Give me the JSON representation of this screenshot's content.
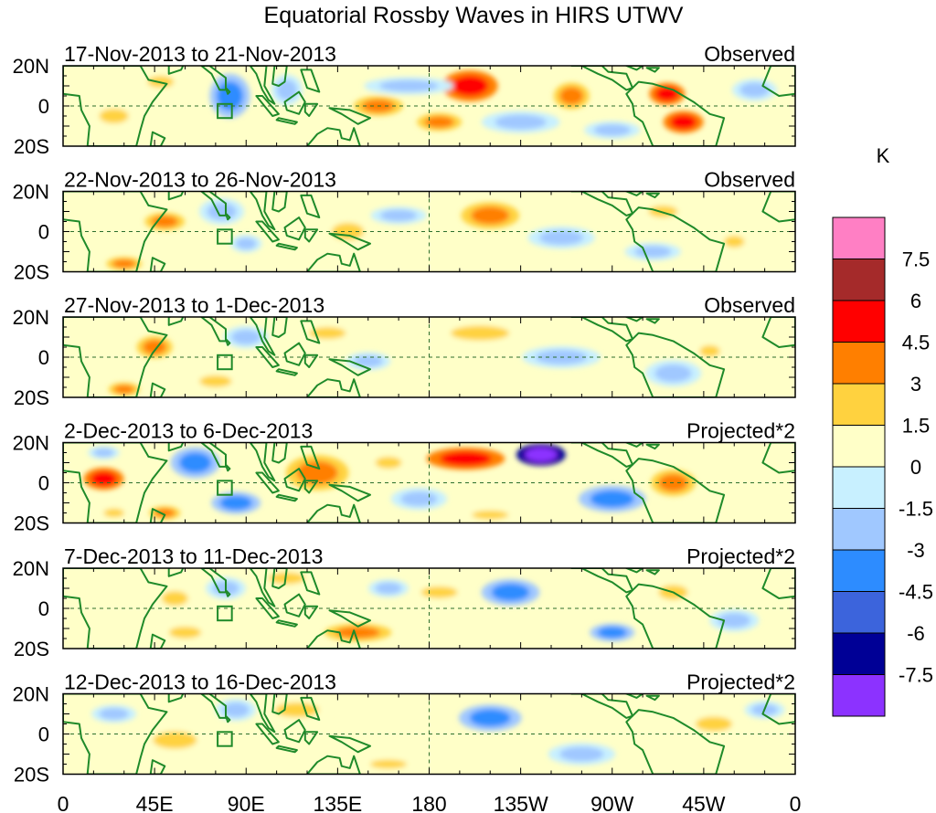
{
  "chart_data": {
    "type": "heatmap",
    "title": "Equatorial Rossby Waves in HIRS UTWV",
    "units": "K",
    "lon_ticks": [
      "0",
      "45E",
      "90E",
      "135E",
      "180",
      "135W",
      "90W",
      "45W",
      "0"
    ],
    "lat_ticks": [
      "20N",
      "0",
      "20S"
    ],
    "lon_range": [
      0,
      360
    ],
    "lat_range": [
      -20,
      20
    ],
    "colorbar": {
      "label": "K",
      "levels": [
        "7.5",
        "6",
        "4.5",
        "3",
        "1.5",
        "0",
        "-1.5",
        "-3",
        "-4.5",
        "-6",
        "-7.5"
      ],
      "colors": [
        "#ff7fc4",
        "#a52a2a",
        "#ff0000",
        "#ff7f00",
        "#ffd23f",
        "#ffffc8",
        "#c8f0ff",
        "#a0c8ff",
        "#2d8cff",
        "#3c64dc",
        "#000096",
        "#8c32ff"
      ]
    },
    "panels": [
      {
        "date_range": "17-Nov-2013 to 21-Nov-2013",
        "label": "Observed",
        "anomalies": [
          {
            "lon": 200,
            "lat": 10,
            "w": 25,
            "h": 14,
            "v": 4.5
          },
          {
            "lon": 297,
            "lat": 6,
            "w": 16,
            "h": 10,
            "v": 4.5
          },
          {
            "lon": 305,
            "lat": -8,
            "w": 18,
            "h": 10,
            "v": 4.5
          },
          {
            "lon": 155,
            "lat": 0,
            "w": 22,
            "h": 9,
            "v": 3
          },
          {
            "lon": 185,
            "lat": -8,
            "w": 20,
            "h": 8,
            "v": 3
          },
          {
            "lon": 250,
            "lat": 5,
            "w": 16,
            "h": 12,
            "v": 3
          },
          {
            "lon": 48,
            "lat": 12,
            "w": 18,
            "h": 8,
            "v": 1.5
          },
          {
            "lon": 25,
            "lat": -5,
            "w": 20,
            "h": 10,
            "v": 1.5
          },
          {
            "lon": 82,
            "lat": 5,
            "w": 18,
            "h": 20,
            "v": -3
          },
          {
            "lon": 110,
            "lat": 8,
            "w": 14,
            "h": 14,
            "v": -1.5
          },
          {
            "lon": 170,
            "lat": 10,
            "w": 40,
            "h": 8,
            "v": -1.5
          },
          {
            "lon": 225,
            "lat": -8,
            "w": 35,
            "h": 10,
            "v": -1.5
          },
          {
            "lon": 270,
            "lat": -12,
            "w": 25,
            "h": 8,
            "v": -1.5
          },
          {
            "lon": 340,
            "lat": 8,
            "w": 20,
            "h": 10,
            "v": -1.5
          }
        ]
      },
      {
        "date_range": "22-Nov-2013 to 26-Nov-2013",
        "label": "Observed",
        "anomalies": [
          {
            "lon": 210,
            "lat": 8,
            "w": 26,
            "h": 12,
            "v": 3
          },
          {
            "lon": 140,
            "lat": 0,
            "w": 22,
            "h": 12,
            "v": 1.5
          },
          {
            "lon": 50,
            "lat": 5,
            "w": 18,
            "h": 8,
            "v": 3
          },
          {
            "lon": 30,
            "lat": -16,
            "w": 16,
            "h": 6,
            "v": 3
          },
          {
            "lon": 330,
            "lat": -5,
            "w": 14,
            "h": 8,
            "v": 1.5
          },
          {
            "lon": 295,
            "lat": 10,
            "w": 20,
            "h": 8,
            "v": 1.5
          },
          {
            "lon": 78,
            "lat": 10,
            "w": 20,
            "h": 12,
            "v": -1.5
          },
          {
            "lon": 90,
            "lat": -6,
            "w": 14,
            "h": 8,
            "v": -1.5
          },
          {
            "lon": 165,
            "lat": 8,
            "w": 25,
            "h": 8,
            "v": -1.5
          },
          {
            "lon": 245,
            "lat": -3,
            "w": 30,
            "h": 10,
            "v": -1.5
          },
          {
            "lon": 290,
            "lat": -10,
            "w": 25,
            "h": 8,
            "v": -1.5
          }
        ]
      },
      {
        "date_range": "27-Nov-2013 to 1-Dec-2013",
        "label": "Observed",
        "anomalies": [
          {
            "lon": 45,
            "lat": 5,
            "w": 16,
            "h": 10,
            "v": 3
          },
          {
            "lon": 30,
            "lat": -16,
            "w": 14,
            "h": 6,
            "v": 3
          },
          {
            "lon": 205,
            "lat": 12,
            "w": 40,
            "h": 10,
            "v": 1.5
          },
          {
            "lon": 130,
            "lat": 12,
            "w": 25,
            "h": 8,
            "v": 1.5
          },
          {
            "lon": 75,
            "lat": -12,
            "w": 22,
            "h": 8,
            "v": 1.5
          },
          {
            "lon": 318,
            "lat": 3,
            "w": 14,
            "h": 8,
            "v": 1.5
          },
          {
            "lon": 90,
            "lat": 10,
            "w": 20,
            "h": 10,
            "v": -1.5
          },
          {
            "lon": 150,
            "lat": -2,
            "w": 20,
            "h": 8,
            "v": -1.5
          },
          {
            "lon": 245,
            "lat": 0,
            "w": 35,
            "h": 10,
            "v": -1.5
          },
          {
            "lon": 300,
            "lat": -8,
            "w": 25,
            "h": 12,
            "v": -1.5
          }
        ]
      },
      {
        "date_range": "2-Dec-2013 to 6-Dec-2013",
        "label": "Projected*2",
        "anomalies": [
          {
            "lon": 20,
            "lat": 2,
            "w": 18,
            "h": 10,
            "v": 4.5
          },
          {
            "lon": 198,
            "lat": 12,
            "w": 35,
            "h": 10,
            "v": 4.5
          },
          {
            "lon": 125,
            "lat": 5,
            "w": 28,
            "h": 16,
            "v": 3
          },
          {
            "lon": 160,
            "lat": 10,
            "w": 18,
            "h": 8,
            "v": 1.5
          },
          {
            "lon": 300,
            "lat": 0,
            "w": 20,
            "h": 12,
            "v": 3
          },
          {
            "lon": 50,
            "lat": -15,
            "w": 14,
            "h": 6,
            "v": 3
          },
          {
            "lon": 25,
            "lat": -15,
            "w": 14,
            "h": 6,
            "v": 1.5
          },
          {
            "lon": 210,
            "lat": -16,
            "w": 25,
            "h": 6,
            "v": 1.5
          },
          {
            "lon": 235,
            "lat": 14,
            "w": 22,
            "h": 10,
            "v": -7.5
          },
          {
            "lon": 65,
            "lat": 10,
            "w": 22,
            "h": 14,
            "v": -3
          },
          {
            "lon": 85,
            "lat": -10,
            "w": 22,
            "h": 10,
            "v": -3
          },
          {
            "lon": 175,
            "lat": -8,
            "w": 25,
            "h": 10,
            "v": -1.5
          },
          {
            "lon": 270,
            "lat": -8,
            "w": 30,
            "h": 12,
            "v": -3
          },
          {
            "lon": 20,
            "lat": 15,
            "w": 14,
            "h": 6,
            "v": -1.5
          }
        ]
      },
      {
        "date_range": "7-Dec-2013 to 11-Dec-2013",
        "label": "Projected*2",
        "anomalies": [
          {
            "lon": 220,
            "lat": 8,
            "w": 26,
            "h": 12,
            "v": -3
          },
          {
            "lon": 270,
            "lat": -12,
            "w": 20,
            "h": 8,
            "v": -3
          },
          {
            "lon": 110,
            "lat": 15,
            "w": 25,
            "h": 8,
            "v": 1.5
          },
          {
            "lon": 145,
            "lat": -12,
            "w": 30,
            "h": 8,
            "v": 3
          },
          {
            "lon": 185,
            "lat": 8,
            "w": 25,
            "h": 8,
            "v": 1.5
          },
          {
            "lon": 55,
            "lat": 5,
            "w": 18,
            "h": 10,
            "v": 1.5
          },
          {
            "lon": 60,
            "lat": -12,
            "w": 22,
            "h": 8,
            "v": 1.5
          },
          {
            "lon": 300,
            "lat": 8,
            "w": 20,
            "h": 10,
            "v": 1.5
          },
          {
            "lon": 80,
            "lat": 10,
            "w": 18,
            "h": 10,
            "v": -1.5
          },
          {
            "lon": 330,
            "lat": -6,
            "w": 22,
            "h": 10,
            "v": -1.5
          },
          {
            "lon": 160,
            "lat": 10,
            "w": 18,
            "h": 8,
            "v": -1.5
          }
        ]
      },
      {
        "date_range": "12-Dec-2013 to 16-Dec-2013",
        "label": "Projected*2",
        "anomalies": [
          {
            "lon": 210,
            "lat": 8,
            "w": 28,
            "h": 12,
            "v": -3
          },
          {
            "lon": 115,
            "lat": 12,
            "w": 30,
            "h": 10,
            "v": 1.5
          },
          {
            "lon": 55,
            "lat": -3,
            "w": 30,
            "h": 12,
            "v": 1.5
          },
          {
            "lon": 320,
            "lat": 5,
            "w": 25,
            "h": 10,
            "v": 1.5
          },
          {
            "lon": 160,
            "lat": -15,
            "w": 25,
            "h": 6,
            "v": 1.5
          },
          {
            "lon": 85,
            "lat": 12,
            "w": 18,
            "h": 10,
            "v": -1.5
          },
          {
            "lon": 25,
            "lat": 10,
            "w": 20,
            "h": 8,
            "v": -1.5
          },
          {
            "lon": 255,
            "lat": -10,
            "w": 30,
            "h": 10,
            "v": -1.5
          },
          {
            "lon": 345,
            "lat": 12,
            "w": 18,
            "h": 8,
            "v": -1.5
          }
        ]
      }
    ]
  }
}
